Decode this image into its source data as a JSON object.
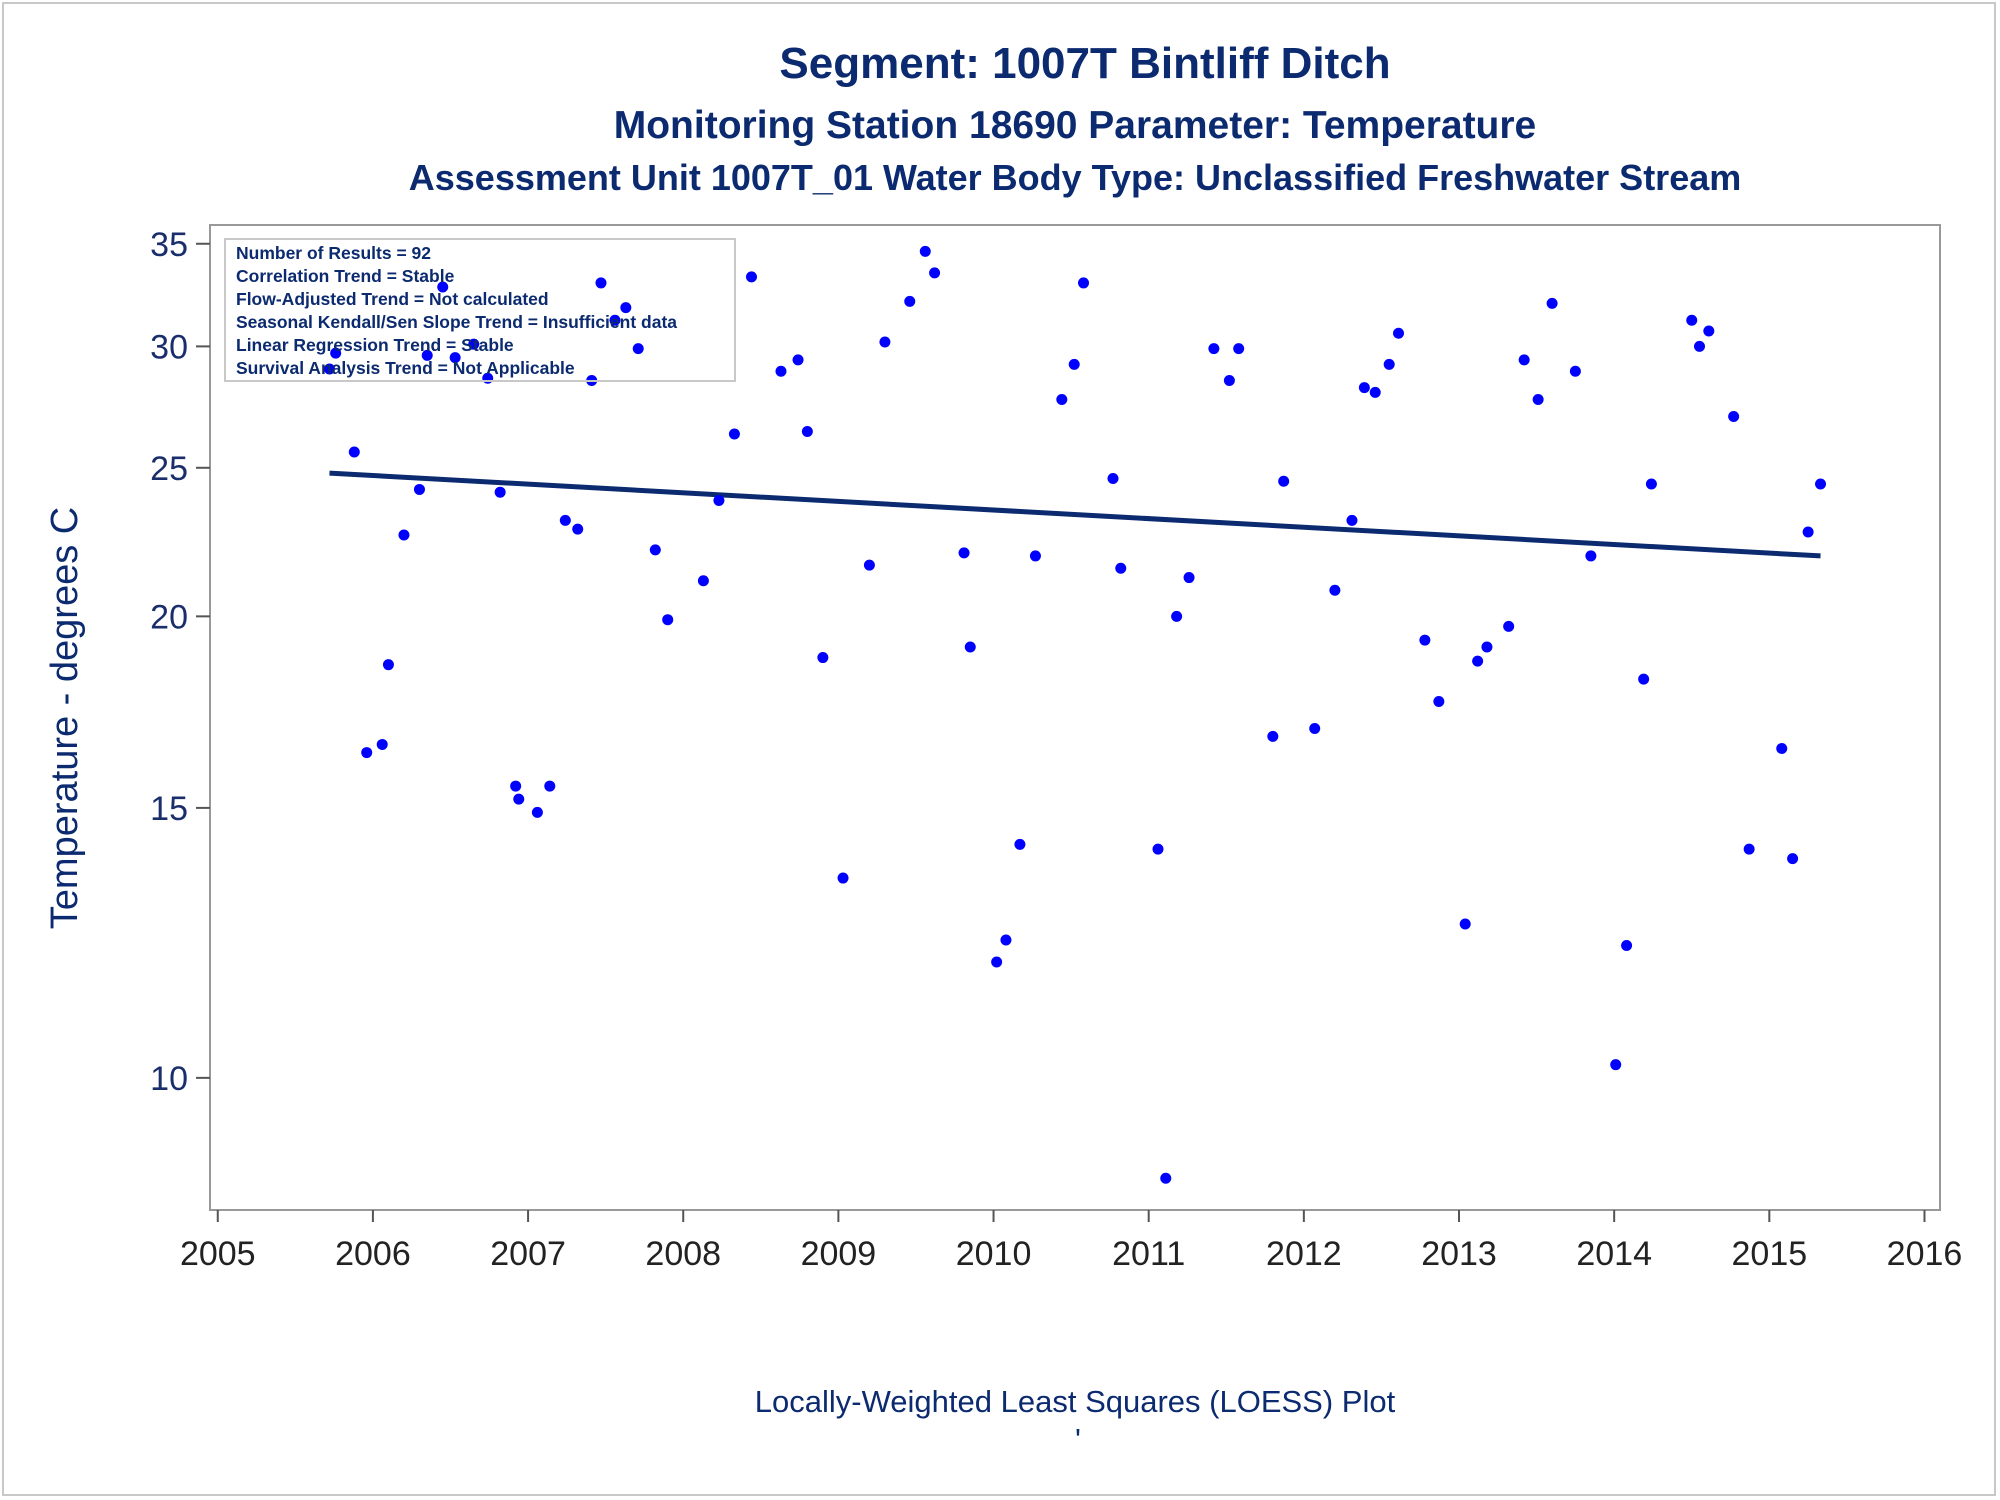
{
  "titles": {
    "line1": "Segment: 1007T  Bintliff Ditch",
    "line2": "Monitoring Station 18690 Parameter: Temperature",
    "line3": "Assessment Unit 1007T_01   Water Body Type: Unclassified Freshwater Stream"
  },
  "stats_box": [
    "Number of Results = 92",
    "Correlation Trend = Stable",
    "Flow-Adjusted Trend = Not calculated",
    "Seasonal Kendall/Sen Slope Trend = Insufficient data",
    "Linear Regression Trend = Stable",
    "Survival Analysis Trend = Not Applicable"
  ],
  "footnote": "Locally-Weighted Least Squares (LOESS) Plot",
  "footnote_mark": "'",
  "colors": {
    "points": "#0000ff",
    "line": "#0b2a6f",
    "text": "#0b2a6f",
    "axis": "#999999"
  },
  "chart_data": {
    "type": "scatter",
    "ylabel": "Temperature - degrees C",
    "xlabel": "",
    "x_ticks": [
      "2005",
      "2006",
      "2007",
      "2008",
      "2009",
      "2010",
      "2011",
      "2012",
      "2013",
      "2014",
      "2015",
      "2016"
    ],
    "y_ticks": [
      10,
      15,
      20,
      25,
      30,
      35
    ],
    "y_scale": "log",
    "xlim": [
      2004.95,
      2016.1
    ],
    "ylim": [
      8.2,
      36.0
    ],
    "grid": false,
    "legend": "top-left inset box",
    "series": [
      {
        "type": "scatter",
        "x": [
          2005.72,
          2005.76,
          2005.88,
          2005.96,
          2006.06,
          2006.1,
          2006.2,
          2006.3,
          2006.35,
          2006.45,
          2006.53,
          2006.65,
          2006.74,
          2006.82,
          2006.92,
          2006.94,
          2007.06,
          2007.14,
          2007.24,
          2007.32,
          2007.41,
          2007.47,
          2007.56,
          2007.63,
          2007.71,
          2007.82,
          2007.9,
          2008.13,
          2008.23,
          2008.33,
          2008.44,
          2008.63,
          2008.74,
          2008.8,
          2008.9,
          2009.03,
          2009.2,
          2009.3,
          2009.46,
          2009.56,
          2009.62,
          2009.81,
          2009.85,
          2010.02,
          2010.08,
          2010.17,
          2010.27,
          2010.44,
          2010.52,
          2010.58,
          2010.77,
          2010.82,
          2011.06,
          2011.11,
          2011.18,
          2011.26,
          2011.42,
          2011.52,
          2011.58,
          2011.8,
          2011.87,
          2012.07,
          2012.2,
          2012.31,
          2012.39,
          2012.46,
          2012.55,
          2012.61,
          2012.78,
          2012.87,
          2013.04,
          2013.12,
          2013.18,
          2013.32,
          2013.42,
          2013.51,
          2013.6,
          2013.75,
          2013.85,
          2014.01,
          2014.08,
          2014.19,
          2014.24,
          2014.5,
          2014.55,
          2014.61,
          2014.77,
          2014.87,
          2015.08,
          2015.15,
          2015.25,
          2015.33
        ],
        "y": [
          29.0,
          29.7,
          25.6,
          16.3,
          16.5,
          18.6,
          22.6,
          24.2,
          29.6,
          32.8,
          29.5,
          30.1,
          28.6,
          24.1,
          15.5,
          15.2,
          14.9,
          15.5,
          23.1,
          22.8,
          28.5,
          33.0,
          31.2,
          31.8,
          29.9,
          22.1,
          19.9,
          21.1,
          23.8,
          26.3,
          33.3,
          28.9,
          29.4,
          26.4,
          18.8,
          13.5,
          21.6,
          30.2,
          32.1,
          34.6,
          33.5,
          22.0,
          19.1,
          11.9,
          12.3,
          14.2,
          21.9,
          27.7,
          29.2,
          33.0,
          24.6,
          21.5,
          14.1,
          8.6,
          20.0,
          21.2,
          29.9,
          28.5,
          29.9,
          16.7,
          24.5,
          16.9,
          20.8,
          23.1,
          28.2,
          28.0,
          29.2,
          30.6,
          19.3,
          17.6,
          12.6,
          18.7,
          19.1,
          19.7,
          29.4,
          27.7,
          32.0,
          28.9,
          21.9,
          10.2,
          12.2,
          18.2,
          24.4,
          31.2,
          30.0,
          30.7,
          27.0,
          14.1,
          16.4,
          13.9,
          22.7,
          24.4
        ]
      },
      {
        "type": "line",
        "name": "",
        "x": [
          2005.72,
          2015.33
        ],
        "y": [
          24.8,
          21.9
        ]
      }
    ]
  }
}
